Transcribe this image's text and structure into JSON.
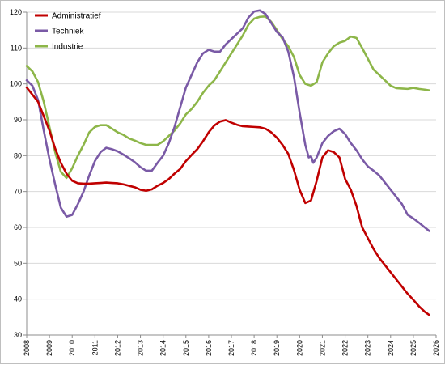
{
  "chart_data": {
    "type": "line",
    "title": "",
    "xlabel": "",
    "ylabel": "",
    "xlim": [
      2008,
      2026
    ],
    "ylim": [
      30,
      120
    ],
    "y_ticks": [
      30,
      40,
      50,
      60,
      70,
      80,
      90,
      100,
      110,
      120
    ],
    "x_tick_labels": [
      "2008",
      "2009",
      "2010",
      "2011",
      "2012",
      "2013",
      "2014",
      "2015",
      "2016",
      "2017",
      "2018",
      "2019",
      "2020",
      "2021",
      "2022",
      "2023",
      "2024",
      "2025",
      "2026"
    ],
    "grid": "horizontal",
    "legend_position": "top-left",
    "series": [
      {
        "name": "Administratief",
        "color": "#c00000",
        "points": [
          [
            2008.0,
            99
          ],
          [
            2008.25,
            97
          ],
          [
            2008.5,
            95
          ],
          [
            2008.75,
            91
          ],
          [
            2009.0,
            87
          ],
          [
            2009.25,
            82
          ],
          [
            2009.5,
            78
          ],
          [
            2009.75,
            75
          ],
          [
            2010.0,
            73
          ],
          [
            2010.25,
            72.3
          ],
          [
            2010.5,
            72.2
          ],
          [
            2010.75,
            72.2
          ],
          [
            2011.0,
            72.3
          ],
          [
            2011.25,
            72.4
          ],
          [
            2011.5,
            72.5
          ],
          [
            2011.75,
            72.4
          ],
          [
            2012.0,
            72.3
          ],
          [
            2012.25,
            72
          ],
          [
            2012.5,
            71.6
          ],
          [
            2012.75,
            71.2
          ],
          [
            2013.0,
            70.5
          ],
          [
            2013.25,
            70.2
          ],
          [
            2013.5,
            70.6
          ],
          [
            2013.75,
            71.6
          ],
          [
            2014.0,
            72.4
          ],
          [
            2014.25,
            73.5
          ],
          [
            2014.5,
            75
          ],
          [
            2014.75,
            76.3
          ],
          [
            2015.0,
            78.5
          ],
          [
            2015.25,
            80.2
          ],
          [
            2015.5,
            81.8
          ],
          [
            2015.75,
            84
          ],
          [
            2016.0,
            86.5
          ],
          [
            2016.25,
            88.4
          ],
          [
            2016.5,
            89.5
          ],
          [
            2016.75,
            89.9
          ],
          [
            2017.0,
            89.2
          ],
          [
            2017.25,
            88.6
          ],
          [
            2017.5,
            88.2
          ],
          [
            2017.75,
            88.1
          ],
          [
            2018.0,
            88
          ],
          [
            2018.25,
            87.9
          ],
          [
            2018.5,
            87.5
          ],
          [
            2018.75,
            86.5
          ],
          [
            2019.0,
            85
          ],
          [
            2019.25,
            83
          ],
          [
            2019.5,
            80.5
          ],
          [
            2019.75,
            76
          ],
          [
            2020.0,
            70.5
          ],
          [
            2020.25,
            66.8
          ],
          [
            2020.5,
            67.5
          ],
          [
            2020.75,
            73
          ],
          [
            2021.0,
            79.5
          ],
          [
            2021.25,
            81.5
          ],
          [
            2021.5,
            81
          ],
          [
            2021.75,
            79.5
          ],
          [
            2022.0,
            73.5
          ],
          [
            2022.25,
            70.5
          ],
          [
            2022.5,
            66
          ],
          [
            2022.75,
            60
          ],
          [
            2023.0,
            57
          ],
          [
            2023.25,
            54
          ],
          [
            2023.5,
            51.5
          ],
          [
            2023.75,
            49.5
          ],
          [
            2024.0,
            47.5
          ],
          [
            2024.25,
            45.5
          ],
          [
            2024.5,
            43.5
          ],
          [
            2024.75,
            41.5
          ],
          [
            2025.0,
            39.8
          ],
          [
            2025.25,
            38
          ],
          [
            2025.5,
            36.5
          ],
          [
            2025.7,
            35.6
          ]
        ]
      },
      {
        "name": "Techniek",
        "color": "#7a5aa6",
        "points": [
          [
            2008.0,
            101
          ],
          [
            2008.25,
            99.5
          ],
          [
            2008.5,
            95.5
          ],
          [
            2008.75,
            87
          ],
          [
            2009.0,
            79
          ],
          [
            2009.25,
            72
          ],
          [
            2009.5,
            65.5
          ],
          [
            2009.75,
            63
          ],
          [
            2010.0,
            63.5
          ],
          [
            2010.25,
            66.5
          ],
          [
            2010.5,
            70
          ],
          [
            2010.75,
            74.5
          ],
          [
            2011.0,
            78.5
          ],
          [
            2011.25,
            81
          ],
          [
            2011.5,
            82.2
          ],
          [
            2011.75,
            81.8
          ],
          [
            2012.0,
            81.2
          ],
          [
            2012.25,
            80.3
          ],
          [
            2012.5,
            79.3
          ],
          [
            2012.75,
            78.2
          ],
          [
            2013.0,
            76.8
          ],
          [
            2013.25,
            75.8
          ],
          [
            2013.5,
            75.8
          ],
          [
            2013.75,
            78
          ],
          [
            2014.0,
            80
          ],
          [
            2014.25,
            83.5
          ],
          [
            2014.5,
            88
          ],
          [
            2014.75,
            93.5
          ],
          [
            2015.0,
            99
          ],
          [
            2015.25,
            102.5
          ],
          [
            2015.5,
            106
          ],
          [
            2015.75,
            108.5
          ],
          [
            2016.0,
            109.5
          ],
          [
            2016.25,
            109
          ],
          [
            2016.5,
            109
          ],
          [
            2016.75,
            111
          ],
          [
            2017.0,
            112.5
          ],
          [
            2017.25,
            114
          ],
          [
            2017.5,
            115.5
          ],
          [
            2017.75,
            118.5
          ],
          [
            2018.0,
            120.2
          ],
          [
            2018.25,
            120.5
          ],
          [
            2018.5,
            119.5
          ],
          [
            2018.75,
            117
          ],
          [
            2019.0,
            114.5
          ],
          [
            2019.25,
            113
          ],
          [
            2019.5,
            109
          ],
          [
            2019.75,
            102
          ],
          [
            2020.0,
            92
          ],
          [
            2020.25,
            83
          ],
          [
            2020.4,
            79.5
          ],
          [
            2020.5,
            79.8
          ],
          [
            2020.6,
            78
          ],
          [
            2020.75,
            79.5
          ],
          [
            2021.0,
            83.5
          ],
          [
            2021.25,
            85.5
          ],
          [
            2021.5,
            86.8
          ],
          [
            2021.75,
            87.5
          ],
          [
            2022.0,
            86
          ],
          [
            2022.25,
            83.5
          ],
          [
            2022.5,
            81.5
          ],
          [
            2022.75,
            79
          ],
          [
            2023.0,
            77
          ],
          [
            2023.25,
            75.8
          ],
          [
            2023.5,
            74.5
          ],
          [
            2023.75,
            72.5
          ],
          [
            2024.0,
            70.5
          ],
          [
            2024.25,
            68.5
          ],
          [
            2024.5,
            66.5
          ],
          [
            2024.75,
            63.5
          ],
          [
            2025.0,
            62.5
          ],
          [
            2025.25,
            61.3
          ],
          [
            2025.5,
            60
          ],
          [
            2025.7,
            59
          ]
        ]
      },
      {
        "name": "Industrie",
        "color": "#8db649",
        "points": [
          [
            2008.0,
            105
          ],
          [
            2008.25,
            103.5
          ],
          [
            2008.5,
            100.5
          ],
          [
            2008.75,
            95
          ],
          [
            2009.0,
            88
          ],
          [
            2009.25,
            81
          ],
          [
            2009.5,
            75.5
          ],
          [
            2009.75,
            73.8
          ],
          [
            2010.0,
            76.5
          ],
          [
            2010.25,
            80
          ],
          [
            2010.5,
            83
          ],
          [
            2010.75,
            86.5
          ],
          [
            2011.0,
            88
          ],
          [
            2011.25,
            88.5
          ],
          [
            2011.5,
            88.5
          ],
          [
            2011.75,
            87.5
          ],
          [
            2012.0,
            86.5
          ],
          [
            2012.25,
            85.8
          ],
          [
            2012.5,
            84.8
          ],
          [
            2012.75,
            84.2
          ],
          [
            2013.0,
            83.5
          ],
          [
            2013.25,
            83
          ],
          [
            2013.5,
            83
          ],
          [
            2013.75,
            83
          ],
          [
            2014.0,
            84
          ],
          [
            2014.25,
            85.5
          ],
          [
            2014.5,
            87
          ],
          [
            2014.75,
            89
          ],
          [
            2015.0,
            91.5
          ],
          [
            2015.25,
            93
          ],
          [
            2015.5,
            95
          ],
          [
            2015.75,
            97.5
          ],
          [
            2016.0,
            99.5
          ],
          [
            2016.25,
            101
          ],
          [
            2016.5,
            103.5
          ],
          [
            2016.75,
            106
          ],
          [
            2017.0,
            108.5
          ],
          [
            2017.25,
            111
          ],
          [
            2017.5,
            113.5
          ],
          [
            2017.75,
            116.5
          ],
          [
            2018.0,
            118.2
          ],
          [
            2018.25,
            118.7
          ],
          [
            2018.5,
            118.8
          ],
          [
            2018.75,
            117.3
          ],
          [
            2019.0,
            115
          ],
          [
            2019.25,
            112.5
          ],
          [
            2019.5,
            110.5
          ],
          [
            2019.75,
            107.5
          ],
          [
            2020.0,
            102.5
          ],
          [
            2020.25,
            100
          ],
          [
            2020.5,
            99.5
          ],
          [
            2020.75,
            100.5
          ],
          [
            2021.0,
            106
          ],
          [
            2021.25,
            108.5
          ],
          [
            2021.5,
            110.5
          ],
          [
            2021.75,
            111.5
          ],
          [
            2022.0,
            112
          ],
          [
            2022.25,
            113.2
          ],
          [
            2022.5,
            112.8
          ],
          [
            2022.75,
            110
          ],
          [
            2023.0,
            107
          ],
          [
            2023.25,
            104
          ],
          [
            2023.5,
            102.5
          ],
          [
            2023.75,
            101
          ],
          [
            2024.0,
            99.5
          ],
          [
            2024.25,
            98.8
          ],
          [
            2024.5,
            98.7
          ],
          [
            2024.75,
            98.6
          ],
          [
            2025.0,
            98.9
          ],
          [
            2025.25,
            98.6
          ],
          [
            2025.5,
            98.4
          ],
          [
            2025.7,
            98.2
          ]
        ]
      }
    ]
  }
}
